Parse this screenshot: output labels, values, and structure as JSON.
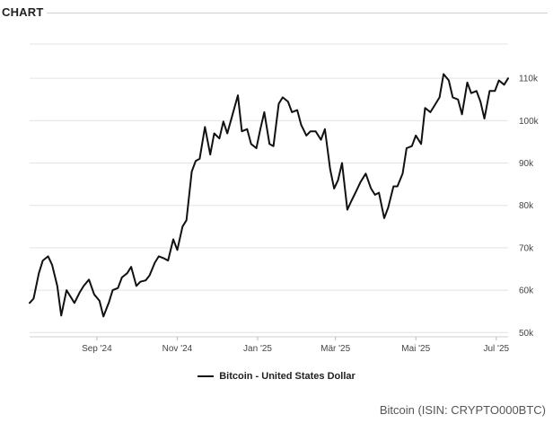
{
  "header": {
    "title": "CHART"
  },
  "chart_data": {
    "type": "line",
    "title": "CHART",
    "xlabel": "",
    "ylabel": "",
    "x_tick_labels": [
      "Sep '24",
      "Nov '24",
      "Jan '25",
      "Mär '25",
      "Mai '25",
      "Jul '25"
    ],
    "y_tick_labels": [
      "50k",
      "60k",
      "70k",
      "80k",
      "90k",
      "100k",
      "110k"
    ],
    "y_ticks": [
      50000,
      60000,
      70000,
      80000,
      90000,
      100000,
      110000
    ],
    "ylim": [
      49000,
      120000
    ],
    "x_range": [
      "2024-07-12",
      "2025-07-10"
    ],
    "grid": true,
    "legend_position": "bottom-center",
    "series": [
      {
        "name": "Bitcoin - United States Dollar",
        "color": "#111111",
        "points": [
          [
            "2024-07-12",
            57000
          ],
          [
            "2024-07-15",
            58000
          ],
          [
            "2024-07-19",
            64000
          ],
          [
            "2024-07-22",
            67000
          ],
          [
            "2024-07-26",
            68000
          ],
          [
            "2024-07-29",
            66000
          ],
          [
            "2024-08-02",
            61000
          ],
          [
            "2024-08-05",
            54000
          ],
          [
            "2024-08-09",
            60000
          ],
          [
            "2024-08-12",
            58500
          ],
          [
            "2024-08-15",
            57000
          ],
          [
            "2024-08-19",
            59500
          ],
          [
            "2024-08-22",
            61000
          ],
          [
            "2024-08-26",
            62500
          ],
          [
            "2024-08-30",
            59000
          ],
          [
            "2024-09-03",
            57500
          ],
          [
            "2024-09-06",
            53800
          ],
          [
            "2024-09-10",
            57000
          ],
          [
            "2024-09-13",
            60000
          ],
          [
            "2024-09-17",
            60500
          ],
          [
            "2024-09-20",
            63000
          ],
          [
            "2024-09-24",
            64000
          ],
          [
            "2024-09-27",
            65500
          ],
          [
            "2024-10-01",
            61000
          ],
          [
            "2024-10-04",
            62000
          ],
          [
            "2024-10-08",
            62300
          ],
          [
            "2024-10-11",
            63500
          ],
          [
            "2024-10-15",
            66500
          ],
          [
            "2024-10-18",
            68000
          ],
          [
            "2024-10-22",
            67500
          ],
          [
            "2024-10-25",
            67000
          ],
          [
            "2024-10-29",
            72000
          ],
          [
            "2024-11-01",
            69500
          ],
          [
            "2024-11-05",
            75000
          ],
          [
            "2024-11-08",
            76500
          ],
          [
            "2024-11-12",
            88000
          ],
          [
            "2024-11-15",
            90500
          ],
          [
            "2024-11-18",
            91000
          ],
          [
            "2024-11-22",
            98500
          ],
          [
            "2024-11-26",
            92000
          ],
          [
            "2024-11-29",
            97000
          ],
          [
            "2024-12-03",
            95800
          ],
          [
            "2024-12-06",
            99800
          ],
          [
            "2024-12-09",
            97000
          ],
          [
            "2024-12-13",
            101500
          ],
          [
            "2024-12-17",
            106000
          ],
          [
            "2024-12-20",
            97500
          ],
          [
            "2024-12-24",
            98000
          ],
          [
            "2024-12-27",
            94500
          ],
          [
            "2024-12-31",
            93500
          ],
          [
            "2025-01-03",
            98000
          ],
          [
            "2025-01-06",
            102000
          ],
          [
            "2025-01-10",
            94500
          ],
          [
            "2025-01-13",
            94000
          ],
          [
            "2025-01-17",
            104000
          ],
          [
            "2025-01-20",
            105500
          ],
          [
            "2025-01-24",
            104500
          ],
          [
            "2025-01-27",
            102000
          ],
          [
            "2025-01-31",
            102500
          ],
          [
            "2025-02-03",
            99000
          ],
          [
            "2025-02-07",
            96500
          ],
          [
            "2025-02-10",
            97500
          ],
          [
            "2025-02-14",
            97500
          ],
          [
            "2025-02-18",
            95500
          ],
          [
            "2025-02-21",
            98000
          ],
          [
            "2025-02-25",
            88500
          ],
          [
            "2025-02-28",
            84000
          ],
          [
            "2025-03-03",
            86000
          ],
          [
            "2025-03-06",
            90000
          ],
          [
            "2025-03-10",
            79000
          ],
          [
            "2025-03-13",
            81000
          ],
          [
            "2025-03-17",
            83500
          ],
          [
            "2025-03-20",
            85500
          ],
          [
            "2025-03-24",
            87500
          ],
          [
            "2025-03-28",
            84000
          ],
          [
            "2025-03-31",
            82500
          ],
          [
            "2025-04-03",
            83000
          ],
          [
            "2025-04-07",
            77000
          ],
          [
            "2025-04-10",
            79500
          ],
          [
            "2025-04-14",
            84500
          ],
          [
            "2025-04-17",
            84500
          ],
          [
            "2025-04-21",
            87500
          ],
          [
            "2025-04-24",
            93500
          ],
          [
            "2025-04-28",
            94000
          ],
          [
            "2025-05-01",
            96500
          ],
          [
            "2025-05-05",
            94500
          ],
          [
            "2025-05-08",
            103000
          ],
          [
            "2025-05-12",
            102000
          ],
          [
            "2025-05-15",
            103500
          ],
          [
            "2025-05-19",
            105500
          ],
          [
            "2025-05-22",
            111000
          ],
          [
            "2025-05-26",
            109500
          ],
          [
            "2025-05-29",
            105500
          ],
          [
            "2025-06-02",
            105000
          ],
          [
            "2025-06-05",
            101500
          ],
          [
            "2025-06-09",
            109000
          ],
          [
            "2025-06-12",
            106500
          ],
          [
            "2025-06-16",
            107000
          ],
          [
            "2025-06-19",
            104500
          ],
          [
            "2025-06-22",
            100500
          ],
          [
            "2025-06-26",
            107000
          ],
          [
            "2025-06-30",
            107000
          ],
          [
            "2025-07-03",
            109500
          ],
          [
            "2025-07-07",
            108500
          ],
          [
            "2025-07-10",
            110000
          ]
        ]
      }
    ]
  },
  "legend": {
    "label": "Bitcoin - United States Dollar"
  },
  "footer": {
    "source": "Bitcoin (ISIN: CRYPTO000BTC)"
  }
}
